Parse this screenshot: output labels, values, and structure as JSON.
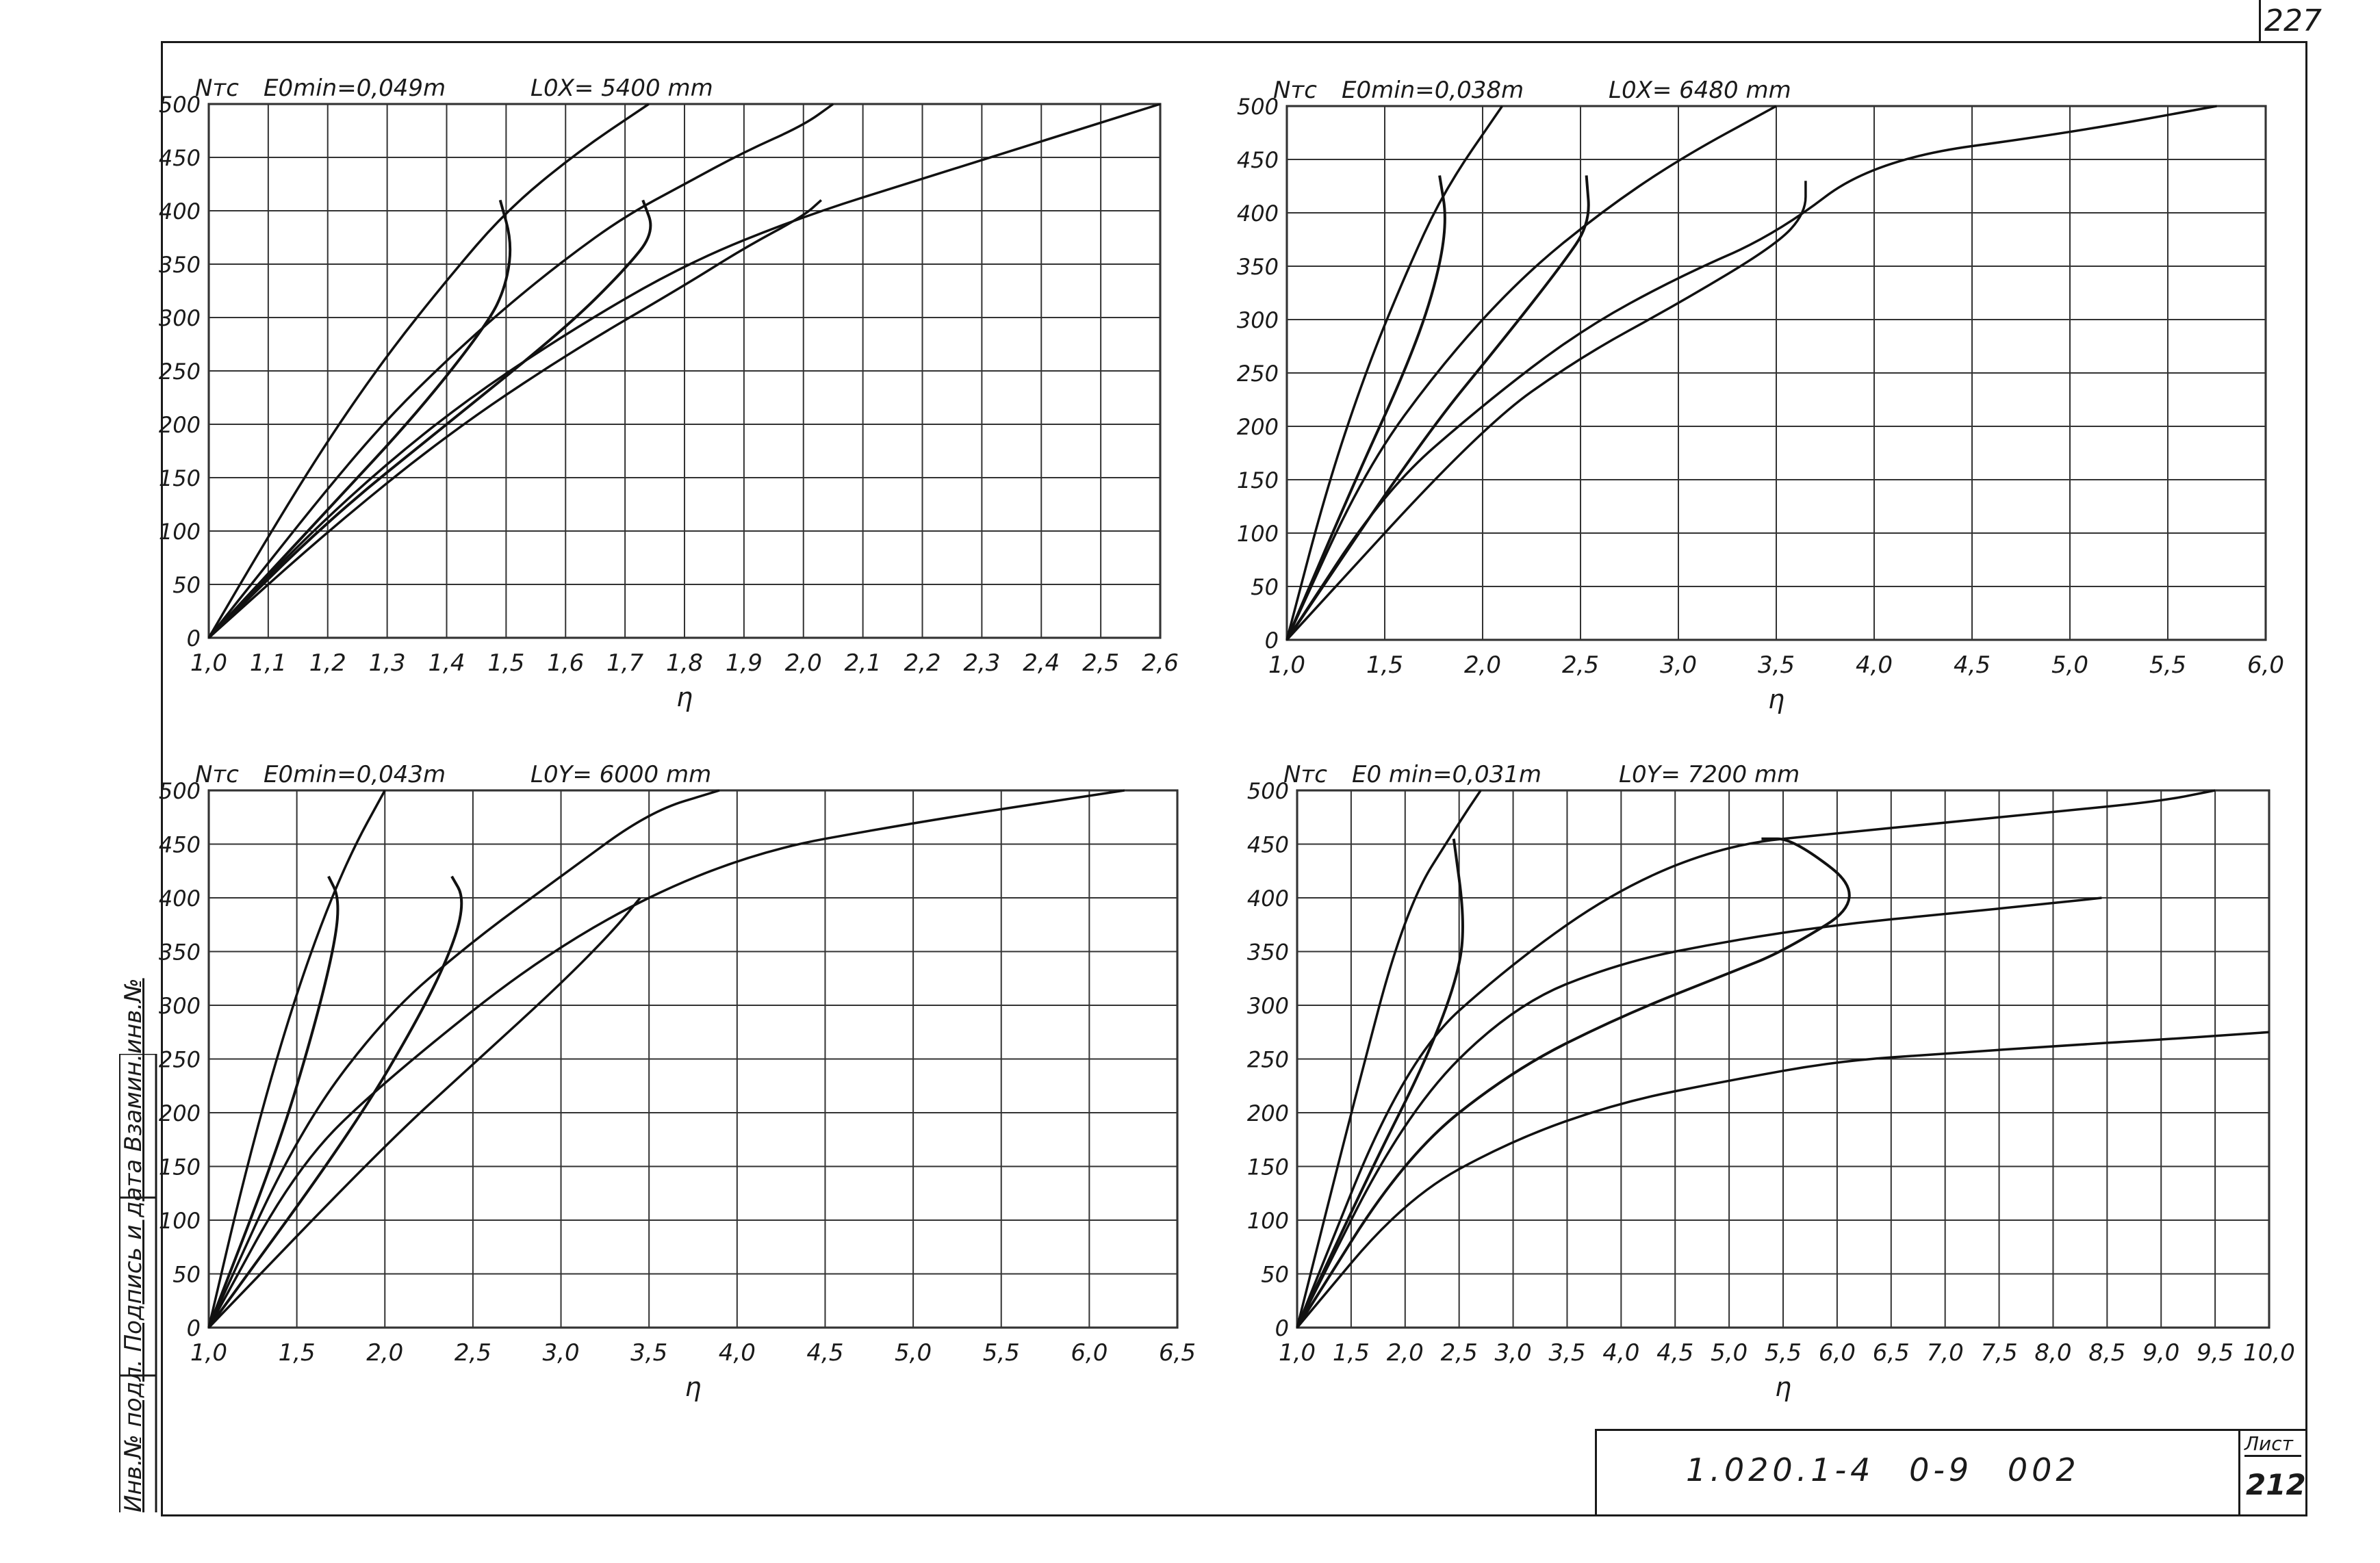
{
  "page": {
    "corner_number": "227",
    "side_stamp": "Инв.№ подл. Подпись и дата Взамин.инв.№",
    "title_block": {
      "code": "1.020.1-4 0-9 002",
      "sheet_label": "Лист",
      "sheet_number": "212"
    }
  },
  "chart_data": [
    {
      "type": "line",
      "ylabel": "Nтс",
      "xlabel": "η",
      "annotation_1": "E0min=0,049m",
      "annotation_2": "L0X= 5400 mm",
      "xlim": [
        1.0,
        2.6
      ],
      "ylim": [
        0,
        500
      ],
      "grid": true,
      "x_ticks": [
        "1,0",
        "1,1",
        "1,2",
        "1,3",
        "1,4",
        "1,5",
        "1,6",
        "1,7",
        "1,8",
        "1,9",
        "2,0",
        "2,1",
        "2,2",
        "2,3",
        "2,4",
        "2,5",
        "2,6"
      ],
      "y_ticks": [
        "0",
        "50",
        "100",
        "150",
        "200",
        "250",
        "300",
        "350",
        "400",
        "450",
        "500"
      ],
      "series": [
        {
          "points": [
            [
              1.0,
              0
            ],
            [
              1.1,
              95
            ],
            [
              1.2,
              185
            ],
            [
              1.3,
              265
            ],
            [
              1.4,
              335
            ],
            [
              1.5,
              400
            ],
            [
              1.62,
              455
            ],
            [
              1.74,
              500
            ]
          ]
        },
        {
          "points": [
            [
              1.0,
              0
            ],
            [
              1.1,
              70
            ],
            [
              1.2,
              140
            ],
            [
              1.3,
              205
            ],
            [
              1.4,
              260
            ],
            [
              1.5,
              310
            ],
            [
              1.6,
              355
            ],
            [
              1.7,
              395
            ],
            [
              1.8,
              425
            ],
            [
              1.9,
              455
            ],
            [
              2.0,
              480
            ],
            [
              2.05,
              500
            ]
          ]
        },
        {
          "points": [
            [
              1.0,
              0
            ],
            [
              1.2,
              115
            ],
            [
              1.4,
              210
            ],
            [
              1.6,
              285
            ],
            [
              1.8,
              350
            ],
            [
              2.0,
              395
            ],
            [
              2.2,
              430
            ],
            [
              2.4,
              465
            ],
            [
              2.6,
              500
            ]
          ]
        },
        {
          "points": [
            [
              1.0,
              0
            ],
            [
              1.2,
              100
            ],
            [
              1.4,
              190
            ],
            [
              1.6,
              265
            ],
            [
              1.8,
              330
            ],
            [
              1.9,
              365
            ],
            [
              2.0,
              395
            ],
            [
              2.03,
              410
            ]
          ]
        },
        {
          "points": [
            [
              1.0,
              0
            ],
            [
              1.2,
              120
            ],
            [
              1.35,
              210
            ],
            [
              1.47,
              295
            ],
            [
              1.5,
              330
            ],
            [
              1.51,
              370
            ],
            [
              1.49,
              410
            ]
          ]
        },
        {
          "points": [
            [
              1.0,
              0
            ],
            [
              1.2,
              110
            ],
            [
              1.4,
              200
            ],
            [
              1.6,
              290
            ],
            [
              1.7,
              345
            ],
            [
              1.75,
              380
            ],
            [
              1.73,
              410
            ]
          ]
        }
      ]
    },
    {
      "type": "line",
      "ylabel": "Nтс",
      "xlabel": "η",
      "annotation_1": "E0min=0,038m",
      "annotation_2": "L0X= 6480 mm",
      "xlim": [
        1.0,
        6.0
      ],
      "ylim": [
        0,
        500
      ],
      "grid": true,
      "x_ticks": [
        "1,0",
        "1,5",
        "2,0",
        "2,5",
        "3,0",
        "3,5",
        "4,0",
        "4,5",
        "5,0",
        "5,5",
        "6,0"
      ],
      "y_ticks": [
        "0",
        "50",
        "100",
        "150",
        "200",
        "250",
        "300",
        "350",
        "400",
        "450",
        "500"
      ],
      "series": [
        {
          "points": [
            [
              1.0,
              0
            ],
            [
              1.2,
              140
            ],
            [
              1.4,
              250
            ],
            [
              1.6,
              340
            ],
            [
              1.8,
              420
            ],
            [
              2.1,
              500
            ]
          ]
        },
        {
          "points": [
            [
              1.0,
              0
            ],
            [
              1.4,
              160
            ],
            [
              1.8,
              260
            ],
            [
              2.2,
              340
            ],
            [
              2.6,
              400
            ],
            [
              3.0,
              450
            ],
            [
              3.5,
              500
            ]
          ]
        },
        {
          "points": [
            [
              1.0,
              0
            ],
            [
              1.5,
              140
            ],
            [
              2.0,
              220
            ],
            [
              2.5,
              290
            ],
            [
              3.0,
              340
            ],
            [
              3.5,
              380
            ],
            [
              4.0,
              450
            ],
            [
              5.0,
              475
            ],
            [
              5.75,
              500
            ]
          ]
        },
        {
          "points": [
            [
              1.0,
              0
            ],
            [
              2.0,
              200
            ],
            [
              2.5,
              265
            ],
            [
              3.0,
              315
            ],
            [
              3.5,
              370
            ],
            [
              3.65,
              400
            ],
            [
              3.65,
              430
            ]
          ]
        },
        {
          "points": [
            [
              1.0,
              0
            ],
            [
              1.35,
              150
            ],
            [
              1.6,
              250
            ],
            [
              1.75,
              325
            ],
            [
              1.82,
              390
            ],
            [
              1.78,
              435
            ]
          ]
        },
        {
          "points": [
            [
              1.0,
              0
            ],
            [
              1.7,
              190
            ],
            [
              2.1,
              280
            ],
            [
              2.4,
              350
            ],
            [
              2.55,
              390
            ],
            [
              2.53,
              435
            ]
          ]
        }
      ]
    },
    {
      "type": "line",
      "ylabel": "Nтс",
      "xlabel": "η",
      "annotation_1": "E0min=0,043m",
      "annotation_2": "L0Y= 6000 mm",
      "xlim": [
        1.0,
        6.5
      ],
      "ylim": [
        0,
        500
      ],
      "grid": true,
      "x_ticks": [
        "1,0",
        "1,5",
        "2,0",
        "2,5",
        "3,0",
        "3,5",
        "4,0",
        "4,5",
        "5,0",
        "5,5",
        "6,0",
        "6,5"
      ],
      "y_ticks": [
        "0",
        "50",
        "100",
        "150",
        "200",
        "250",
        "300",
        "350",
        "400",
        "450",
        "500"
      ],
      "series": [
        {
          "points": [
            [
              1.0,
              0
            ],
            [
              1.2,
              140
            ],
            [
              1.4,
              260
            ],
            [
              1.6,
              360
            ],
            [
              1.8,
              440
            ],
            [
              2.0,
              500
            ]
          ]
        },
        {
          "points": [
            [
              1.0,
              0
            ],
            [
              1.5,
              180
            ],
            [
              2.0,
              290
            ],
            [
              2.5,
              360
            ],
            [
              3.0,
              420
            ],
            [
              3.5,
              480
            ],
            [
              3.9,
              500
            ]
          ]
        },
        {
          "points": [
            [
              1.0,
              0
            ],
            [
              1.5,
              150
            ],
            [
              2.0,
              230
            ],
            [
              3.0,
              360
            ],
            [
              4.0,
              440
            ],
            [
              5.0,
              470
            ],
            [
              6.2,
              500
            ]
          ]
        },
        {
          "points": [
            [
              1.0,
              0
            ],
            [
              2.0,
              170
            ],
            [
              2.5,
              245
            ],
            [
              3.0,
              320
            ],
            [
              3.3,
              370
            ],
            [
              3.45,
              400
            ]
          ]
        },
        {
          "points": [
            [
              1.0,
              0
            ],
            [
              1.4,
              170
            ],
            [
              1.6,
              280
            ],
            [
              1.72,
              360
            ],
            [
              1.74,
              400
            ],
            [
              1.68,
              420
            ]
          ]
        },
        {
          "points": [
            [
              1.0,
              0
            ],
            [
              1.8,
              180
            ],
            [
              2.2,
              290
            ],
            [
              2.4,
              360
            ],
            [
              2.45,
              400
            ],
            [
              2.38,
              420
            ]
          ]
        }
      ]
    },
    {
      "type": "line",
      "ylabel": "Nтс",
      "xlabel": "η",
      "annotation_1": "E0 min=0,031m",
      "annotation_2": "L0Y= 7200 mm",
      "xlim": [
        1.0,
        10.0
      ],
      "ylim": [
        0,
        500
      ],
      "grid": true,
      "x_ticks": [
        "1,0",
        "1,5",
        "2,0",
        "2,5",
        "3,0",
        "3,5",
        "4,0",
        "4,5",
        "5,0",
        "5,5",
        "6,0",
        "6,5",
        "7,0",
        "7,5",
        "8,0",
        "8,5",
        "9,0",
        "9,5",
        "10,0"
      ],
      "y_ticks": [
        "0",
        "50",
        "100",
        "150",
        "200",
        "250",
        "300",
        "350",
        "400",
        "450",
        "500"
      ],
      "series": [
        {
          "points": [
            [
              1.0,
              0
            ],
            [
              1.5,
              200
            ],
            [
              2.0,
              390
            ],
            [
              2.5,
              470
            ],
            [
              2.7,
              500
            ]
          ]
        },
        {
          "points": [
            [
              1.0,
              0
            ],
            [
              2.0,
              250
            ],
            [
              3.0,
              340
            ],
            [
              4.0,
              410
            ],
            [
              5.0,
              450
            ],
            [
              6.0,
              460
            ],
            [
              7.0,
              470
            ],
            [
              8.0,
              480
            ],
            [
              9.0,
              490
            ],
            [
              9.5,
              500
            ]
          ]
        },
        {
          "points": [
            [
              1.0,
              0
            ],
            [
              2.0,
              200
            ],
            [
              3.0,
              300
            ],
            [
              4.0,
              340
            ],
            [
              5.0,
              360
            ],
            [
              6.0,
              375
            ],
            [
              7.0,
              385
            ],
            [
              8.0,
              395
            ],
            [
              8.45,
              400
            ]
          ]
        },
        {
          "points": [
            [
              1.0,
              0
            ],
            [
              2.0,
              120
            ],
            [
              3.0,
              175
            ],
            [
              4.0,
              210
            ],
            [
              5.0,
              230
            ],
            [
              6.0,
              248
            ],
            [
              7.0,
              255
            ],
            [
              8.0,
              262
            ],
            [
              9.0,
              268
            ],
            [
              10.0,
              275
            ]
          ]
        },
        {
          "points": [
            [
              1.0,
              0
            ],
            [
              2.0,
              160
            ],
            [
              3.0,
              240
            ],
            [
              4.0,
              290
            ],
            [
              5.0,
              330
            ],
            [
              5.5,
              350
            ],
            [
              6.3,
              400
            ],
            [
              5.6,
              455
            ],
            [
              5.3,
              455
            ]
          ]
        },
        {
          "points": [
            [
              1.0,
              0
            ],
            [
              1.7,
              150
            ],
            [
              2.2,
              250
            ],
            [
              2.5,
              330
            ],
            [
              2.55,
              380
            ],
            [
              2.45,
              455
            ]
          ]
        }
      ]
    }
  ]
}
